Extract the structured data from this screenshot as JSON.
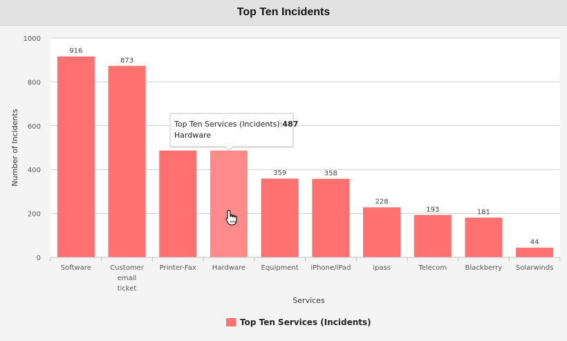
{
  "header": {
    "title": "Top Ten Incidents"
  },
  "colors": {
    "bar": "#ff7070",
    "bar_hover": "#ff8a8a",
    "grid": "#cfcfcf",
    "plot_bg": "#ffffff"
  },
  "chart_data": {
    "type": "bar",
    "categories": [
      "Software",
      "Customer email ticket",
      "Printer-Fax",
      "Hardware",
      "Equipment",
      "iPhone/iPad",
      "ipass",
      "Telecom",
      "Blackberry",
      "Solarwinds"
    ],
    "category_lines": [
      [
        "Software"
      ],
      [
        "Customer",
        "email",
        "ticket"
      ],
      [
        "Printer-Fax"
      ],
      [
        "Hardware"
      ],
      [
        "Equipment"
      ],
      [
        "iPhone/iPad"
      ],
      [
        "ipass"
      ],
      [
        "Telecom"
      ],
      [
        "Blackberry"
      ],
      [
        "Solarwinds"
      ]
    ],
    "series": [
      {
        "name": "Top Ten Services (Incidents)",
        "values": [
          916,
          873,
          487,
          487,
          359,
          358,
          228,
          193,
          181,
          44
        ]
      }
    ],
    "xlabel": "Services",
    "ylabel": "Number of Incidents",
    "ylim": [
      0,
      1000
    ],
    "yticks": [
      0,
      200,
      400,
      600,
      800,
      1000
    ],
    "grid": true,
    "legend": "bottom-center",
    "hover_index": 3
  },
  "tooltip": {
    "series_label": "Top Ten Services (Incidents):",
    "value": "487",
    "category": "Hardware"
  }
}
